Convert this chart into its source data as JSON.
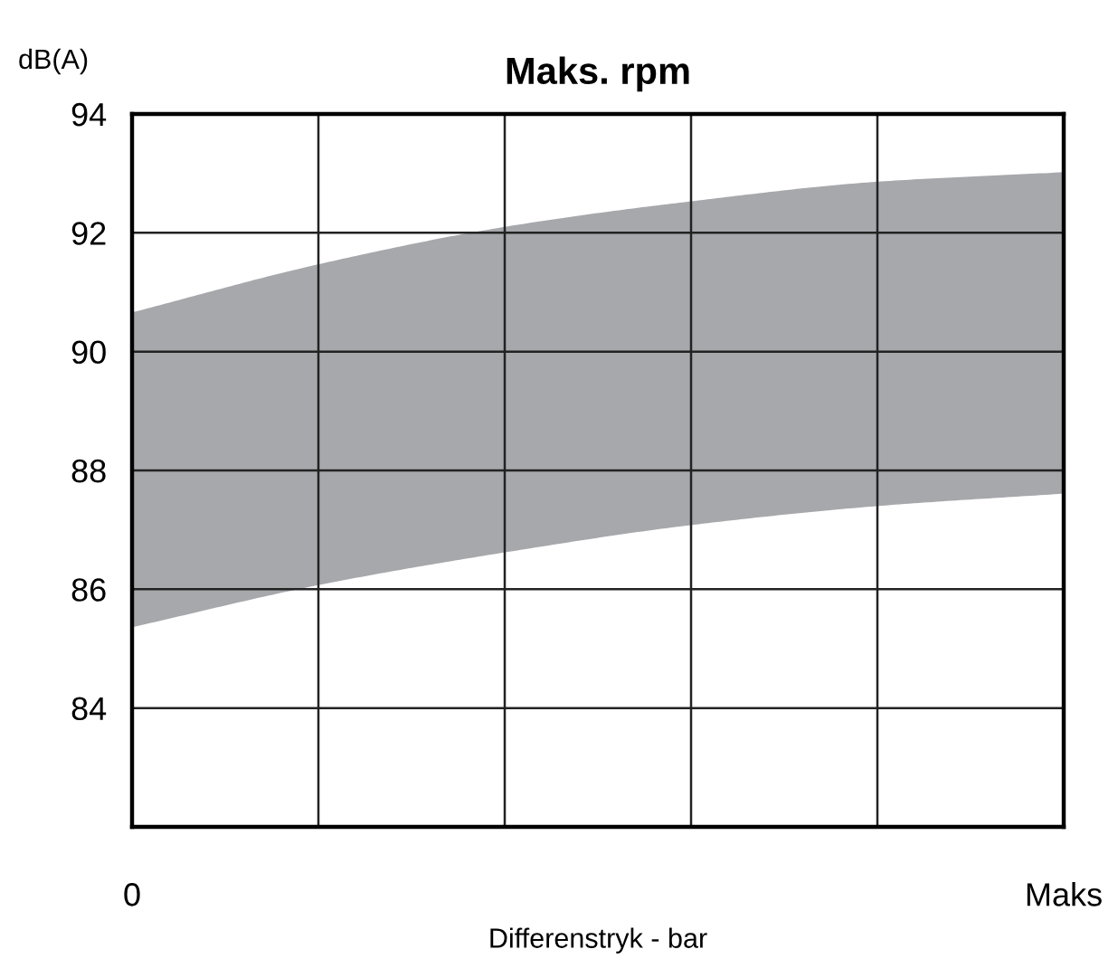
{
  "chart_data": {
    "type": "area",
    "title": "Maks. rpm",
    "xlabel": "Differenstryk - bar",
    "ylabel": "dB(A)",
    "categories": [
      "0",
      null,
      null,
      null,
      null,
      "Maks"
    ],
    "series": [
      {
        "color": "#a7a8ac",
        "values": [
          null,
          null,
          null,
          null,
          null,
          null
        ],
        "lower": [
          85.36,
          86.07,
          86.62,
          87.08,
          87.4,
          87.61
        ],
        "upper": [
          90.66,
          91.47,
          92.1,
          92.53,
          92.86,
          93.02
        ]
      }
    ],
    "ylim": [
      82,
      94
    ],
    "yticks": [
      84,
      86,
      88,
      90,
      92,
      94
    ],
    "grid": true
  }
}
